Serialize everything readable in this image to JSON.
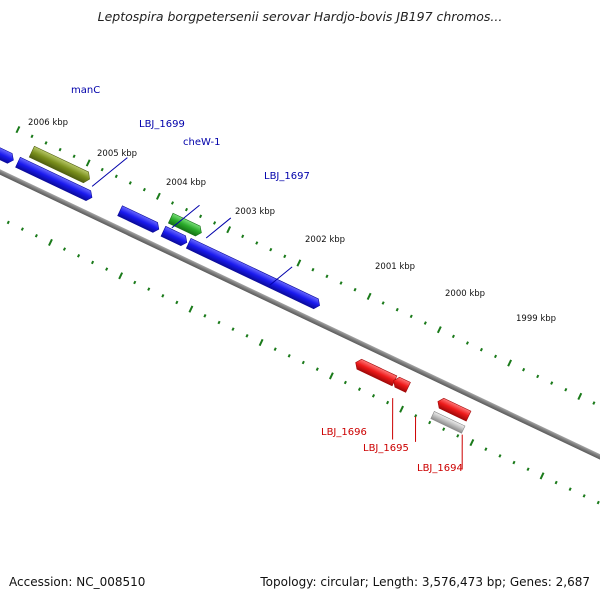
{
  "title": "Leptospira borgpetersenii serovar Hardjo-bovis JB197 chromos...",
  "footer": {
    "accession_label": "Accession: NC_008510",
    "summary": "Topology: circular; Length: 3,576,473 bp; Genes: 2,687"
  },
  "tick_labels": [
    "2006 kbp",
    "2005 kbp",
    "2004 kbp",
    "2003 kbp",
    "2002 kbp",
    "2001 kbp",
    "2000 kbp",
    "1999 kbp"
  ],
  "genes": {
    "forward": [
      {
        "label": "manC",
        "color": "#7a8f1c"
      },
      {
        "label": "LBJ_1699",
        "color": "#1a1aee"
      },
      {
        "label": "cheW-1",
        "color": "#2aaa2a"
      },
      {
        "label": "LBJ_1697",
        "color": "#1a1aee"
      }
    ],
    "reverse": [
      {
        "label": "LBJ_1696",
        "color": "#ee1a1a"
      },
      {
        "label": "LBJ_1695",
        "color": "#ee1a1a"
      },
      {
        "label": "LBJ_1694",
        "color": "#ee1a1a"
      }
    ]
  },
  "colors": {
    "forward_label": "#0000aa",
    "reverse_label": "#cc0000",
    "tick": "#1a7a1a",
    "backbone": "#808080",
    "gray_feature": "#b0b0b0"
  }
}
